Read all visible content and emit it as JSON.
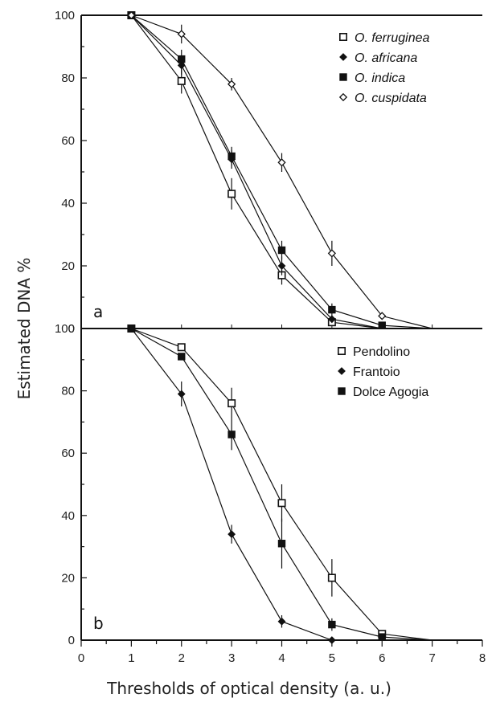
{
  "chart_data": [
    {
      "type": "line",
      "panel_label": "a",
      "xlim": [
        0,
        8
      ],
      "ylim": [
        0,
        100
      ],
      "xticks": [
        0,
        1,
        2,
        3,
        4,
        5,
        6,
        7,
        8
      ],
      "yticks": [
        0,
        20,
        40,
        60,
        80,
        100
      ],
      "legend_placement": "top-right",
      "legend_italic": true,
      "series": [
        {
          "name": "O. ferruginea",
          "marker": "open-square",
          "x": [
            1,
            2,
            3,
            4,
            5,
            6,
            7
          ],
          "y": [
            100,
            79,
            43,
            17,
            2,
            0,
            0
          ],
          "err": [
            0,
            4,
            5,
            3,
            1,
            0,
            0
          ]
        },
        {
          "name": "O. africana",
          "marker": "filled-diamond",
          "x": [
            1,
            2,
            3,
            4,
            5,
            6,
            7
          ],
          "y": [
            100,
            84,
            54,
            20,
            3,
            0,
            0
          ],
          "err": [
            0,
            3,
            3,
            3,
            1,
            0,
            0
          ]
        },
        {
          "name": "O. indica",
          "marker": "filled-square",
          "x": [
            1,
            2,
            3,
            4,
            5,
            6,
            7
          ],
          "y": [
            100,
            86,
            55,
            25,
            6,
            1,
            0
          ],
          "err": [
            0,
            3,
            3,
            3,
            2,
            0,
            0
          ]
        },
        {
          "name": "O. cuspidata",
          "marker": "open-diamond",
          "x": [
            1,
            2,
            3,
            4,
            5,
            6,
            7
          ],
          "y": [
            100,
            94,
            78,
            53,
            24,
            4,
            0
          ],
          "err": [
            0,
            3,
            2,
            3,
            4,
            1,
            0
          ]
        }
      ]
    },
    {
      "type": "line",
      "panel_label": "b",
      "xlim": [
        0,
        8
      ],
      "ylim": [
        0,
        100
      ],
      "xticks": [
        0,
        1,
        2,
        3,
        4,
        5,
        6,
        7,
        8
      ],
      "yticks": [
        0,
        20,
        40,
        60,
        80,
        100
      ],
      "xlabel": "Thresholds of optical density (a. u.)",
      "legend_placement": "top-right",
      "legend_italic": false,
      "series": [
        {
          "name": "Pendolino",
          "marker": "open-square",
          "x": [
            1,
            2,
            3,
            4,
            5,
            6,
            7
          ],
          "y": [
            100,
            94,
            76,
            44,
            20,
            2,
            0
          ],
          "err": [
            0,
            1,
            5,
            6,
            6,
            1,
            0
          ]
        },
        {
          "name": "Frantoio",
          "marker": "filled-diamond",
          "x": [
            1,
            2,
            3,
            4,
            5,
            6,
            7
          ],
          "y": [
            100,
            79,
            34,
            6,
            0,
            0,
            0
          ],
          "err": [
            0,
            4,
            3,
            2,
            0,
            0,
            0
          ]
        },
        {
          "name": "Dolce Agogia",
          "marker": "filled-square",
          "x": [
            1,
            2,
            3,
            4,
            5,
            6,
            7
          ],
          "y": [
            100,
            91,
            66,
            31,
            5,
            1,
            0
          ],
          "err": [
            0,
            1,
            5,
            8,
            2,
            0,
            0
          ]
        }
      ]
    }
  ],
  "shared": {
    "ylabel": "Estimated DNA %",
    "y_tick_labels": [
      "0",
      "20",
      "40",
      "60",
      "80",
      "100"
    ],
    "x_tick_labels": [
      "0",
      "1",
      "2",
      "3",
      "4",
      "5",
      "6",
      "7",
      "8"
    ]
  }
}
